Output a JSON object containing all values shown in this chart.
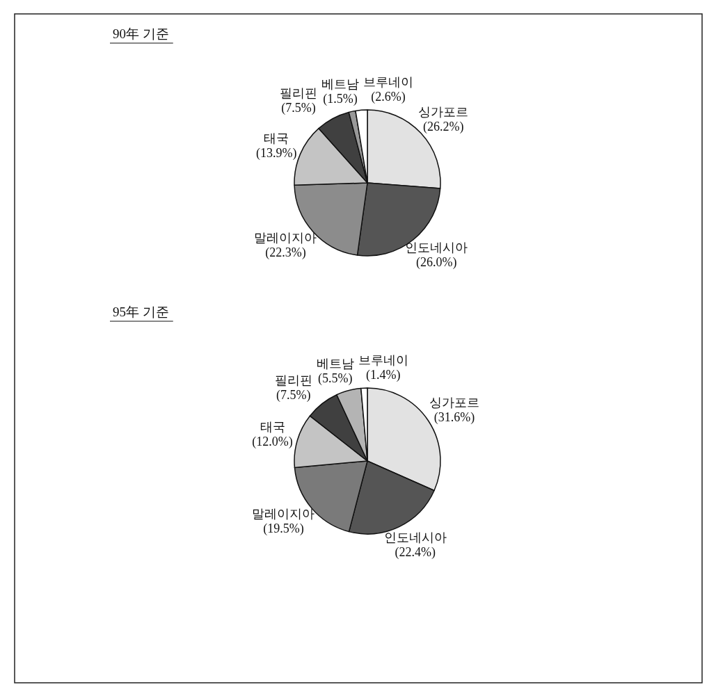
{
  "chart_data": [
    {
      "type": "pie",
      "title": "90年 기준",
      "categories": [
        "싱가포르",
        "인도네시아",
        "말레이지아",
        "태국",
        "필리핀",
        "베트남",
        "브루네이"
      ],
      "values": [
        26.2,
        26.0,
        22.3,
        13.9,
        7.5,
        1.5,
        2.6
      ],
      "value_labels": [
        "(26.2%)",
        "(26.0%)",
        "(22.3%)",
        "(13.9%)",
        "(7.5%)",
        "(1.5%)",
        "(2.6%)"
      ],
      "colors": [
        "#e2e2e2",
        "#555555",
        "#8c8c8c",
        "#c4c4c4",
        "#404040",
        "#999999",
        "#ffffff"
      ]
    },
    {
      "type": "pie",
      "title": "95年 기준",
      "categories": [
        "싱가포르",
        "인도네시아",
        "말레이지아",
        "태국",
        "필리핀",
        "베트남",
        "브루네이"
      ],
      "values": [
        31.6,
        22.4,
        19.5,
        12.0,
        7.5,
        5.5,
        1.4
      ],
      "value_labels": [
        "(31.6%)",
        "(22.4%)",
        "(19.5%)",
        "(12.0%)",
        "(7.5%)",
        "(5.5%)",
        "(1.4%)"
      ],
      "colors": [
        "#e2e2e2",
        "#555555",
        "#7a7a7a",
        "#c4c4c4",
        "#404040",
        "#b4b4b4",
        "#ffffff"
      ]
    }
  ]
}
